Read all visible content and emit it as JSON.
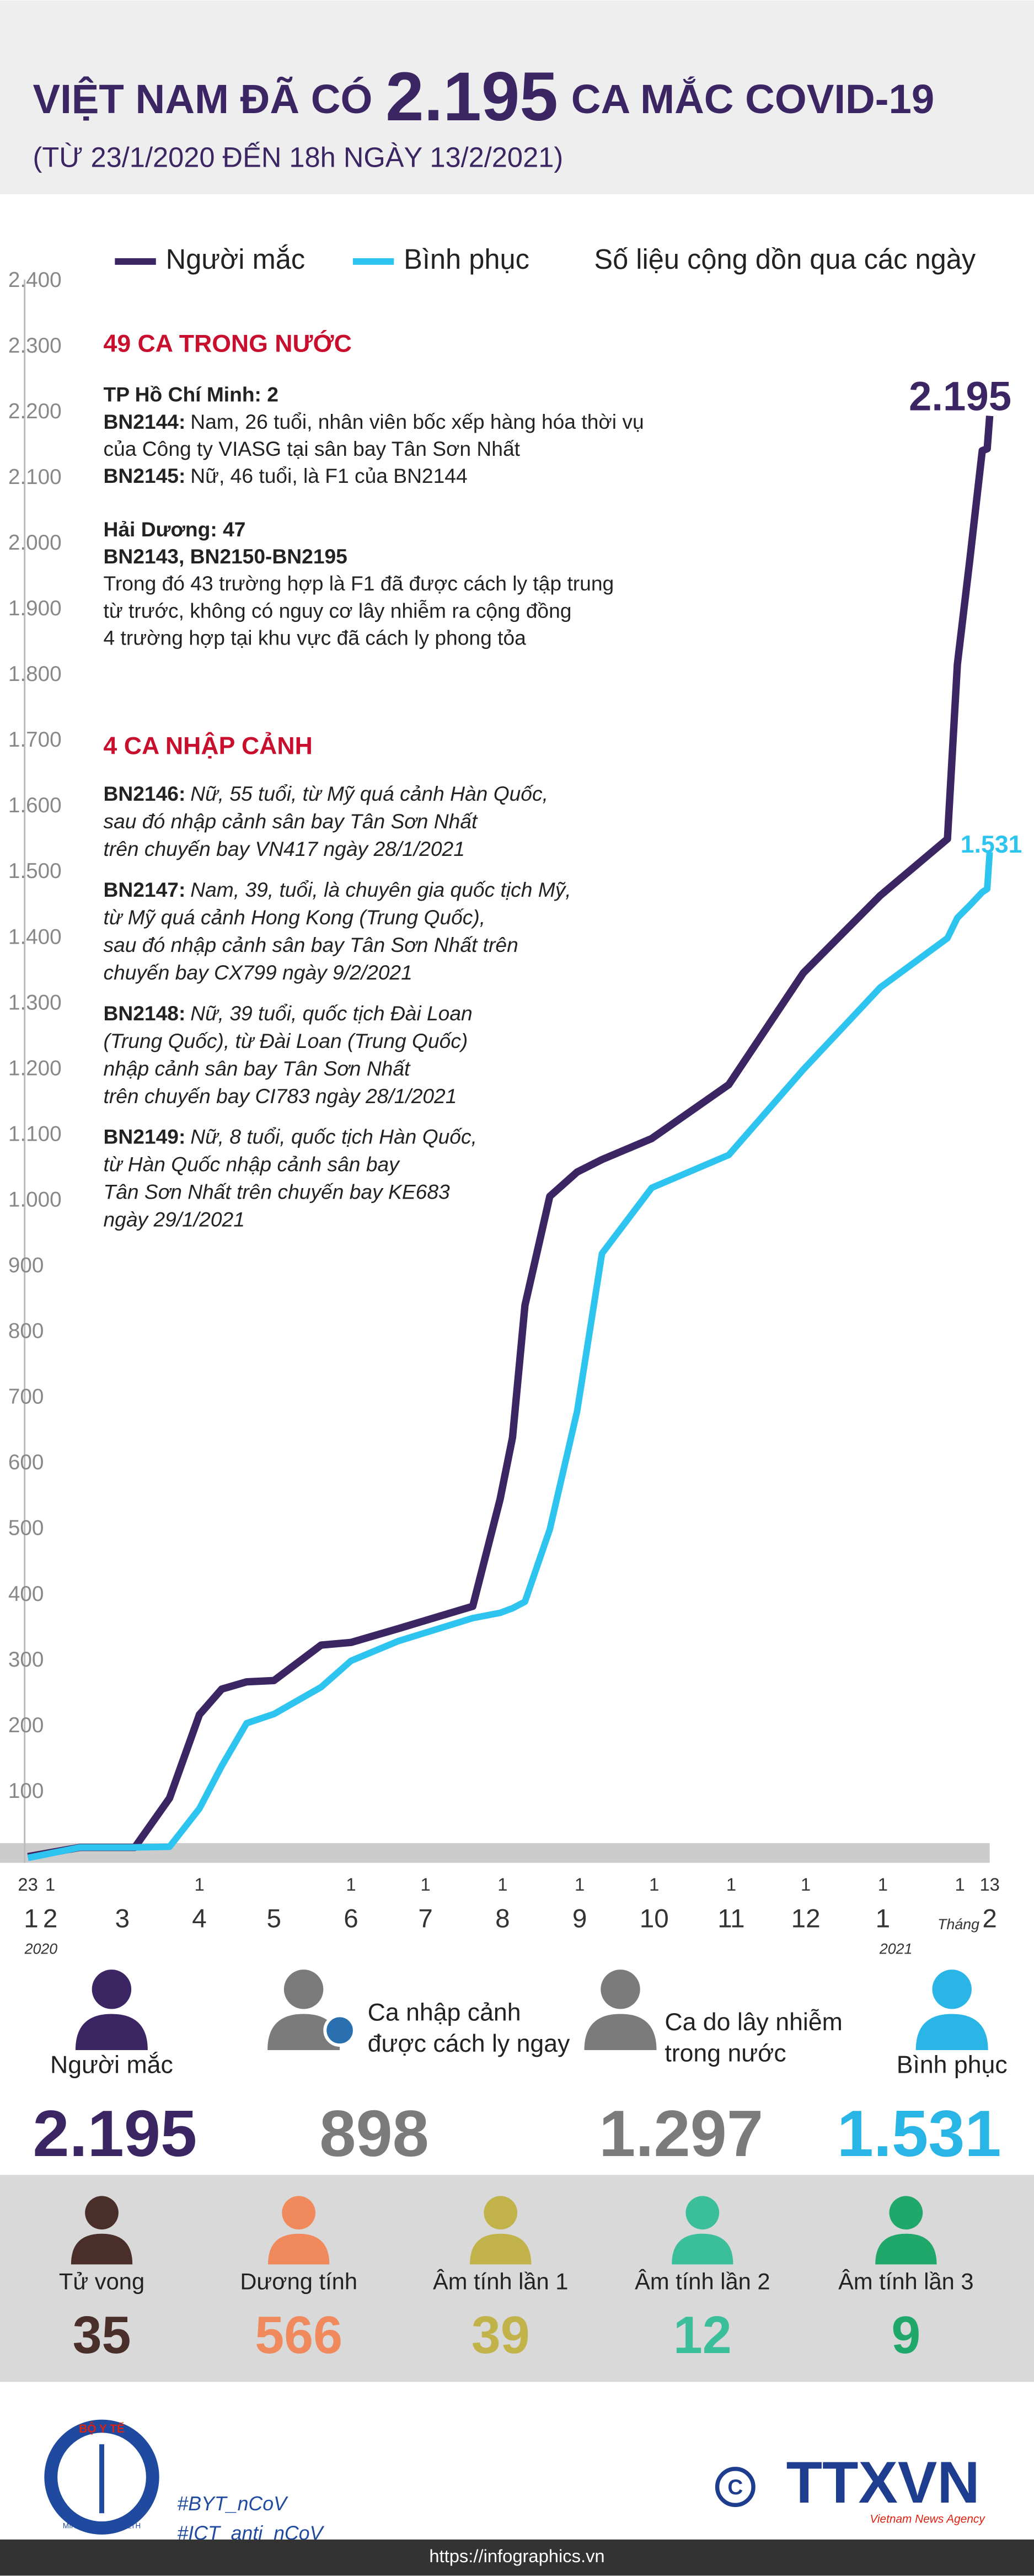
{
  "header": {
    "title_pre": "VIỆT NAM ĐÃ CÓ",
    "title_number": "2.195",
    "title_post": "CA MẮC COVID-19",
    "subtitle": "(TỪ 23/1/2020 ĐẾN 18h NGÀY 13/2/2021)"
  },
  "chart_data": {
    "type": "line",
    "note": "Số liệu cộng dồn qua các ngày",
    "x": [
      "2020-01-23",
      "2020-02-13",
      "2020-03-06",
      "2020-03-20",
      "2020-04-01",
      "2020-04-10",
      "2020-04-20",
      "2020-05-01",
      "2020-05-20",
      "2020-06-01",
      "2020-06-20",
      "2020-07-20",
      "2020-07-31",
      "2020-08-05",
      "2020-08-10",
      "2020-08-20",
      "2020-08-31",
      "2020-09-10",
      "2020-09-30",
      "2020-10-31",
      "2020-11-30",
      "2020-12-31",
      "2021-01-27",
      "2021-01-31",
      "2021-02-05",
      "2021-02-10",
      "2021-02-12",
      "2021-02-13"
    ],
    "series": [
      {
        "name": "Người mắc",
        "color": "#3b2563",
        "end_label": "2.195",
        "values": [
          2,
          16,
          16,
          91,
          218,
          257,
          268,
          270,
          324,
          328,
          349,
          383,
          546,
          640,
          841,
          1007,
          1044,
          1063,
          1095,
          1177,
          1347,
          1465,
          1551,
          1817,
          1976,
          2142,
          2145,
          2195
        ]
      },
      {
        "name": "Bình phục",
        "color": "#2ec4f0",
        "end_label": "1.531",
        "values": [
          0,
          16,
          16,
          17,
          75,
          140,
          205,
          219,
          260,
          300,
          330,
          365,
          373,
          380,
          390,
          500,
          680,
          920,
          1020,
          1070,
          1200,
          1325,
          1400,
          1431,
          1450,
          1470,
          1475,
          1531
        ]
      }
    ],
    "xlim": [
      "2020-01-23",
      "2021-02-13"
    ],
    "xticks": [
      {
        "value": "2020-01-23",
        "label": "23"
      },
      {
        "value": "2020-02-01",
        "label": "1"
      },
      {
        "value": "2020-04-01",
        "label": "1"
      },
      {
        "value": "2020-06-01",
        "label": "1"
      },
      {
        "value": "2020-07-01",
        "label": "1"
      },
      {
        "value": "2020-08-01",
        "label": "1"
      },
      {
        "value": "2020-09-01",
        "label": "1"
      },
      {
        "value": "2020-10-01",
        "label": "1"
      },
      {
        "value": "2020-11-01",
        "label": "1"
      },
      {
        "value": "2020-12-01",
        "label": "1"
      },
      {
        "value": "2021-01-01",
        "label": "1"
      },
      {
        "value": "2021-02-01",
        "label": "1"
      },
      {
        "value": "2021-02-13",
        "label": "13"
      }
    ],
    "month_ticks": [
      {
        "value": "2020-01-23",
        "label": "1"
      },
      {
        "value": "2020-02-01",
        "label": "2"
      },
      {
        "value": "2020-03-01",
        "label": "3"
      },
      {
        "value": "2020-04-01",
        "label": "4"
      },
      {
        "value": "2020-05-01",
        "label": "5"
      },
      {
        "value": "2020-06-01",
        "label": "6"
      },
      {
        "value": "2020-07-01",
        "label": "7"
      },
      {
        "value": "2020-08-01",
        "label": "8"
      },
      {
        "value": "2020-09-01",
        "label": "9"
      },
      {
        "value": "2020-10-01",
        "label": "10"
      },
      {
        "value": "2020-11-01",
        "label": "11"
      },
      {
        "value": "2020-12-01",
        "label": "12"
      },
      {
        "value": "2021-01-01",
        "label": "1"
      },
      {
        "value": "2021-02-13",
        "label": "2"
      }
    ],
    "year_ticks": [
      {
        "value": "2020-01-23",
        "label": "2020"
      },
      {
        "value": "2021-01-01",
        "label": "2021"
      }
    ],
    "month_prefix": "Tháng",
    "ylim": [
      0,
      2400
    ],
    "yticks": [
      100,
      200,
      300,
      400,
      500,
      600,
      700,
      800,
      900,
      {
        "value": 1000,
        "label": "1.000"
      },
      {
        "value": 1100,
        "label": "1.100"
      },
      {
        "value": 1200,
        "label": "1.200"
      },
      {
        "value": 1300,
        "label": "1.300"
      },
      {
        "value": 1400,
        "label": "1.400"
      },
      {
        "value": 1500,
        "label": "1.500"
      },
      {
        "value": 1600,
        "label": "1.600"
      },
      {
        "value": 1700,
        "label": "1.700"
      },
      {
        "value": 1800,
        "label": "1.800"
      },
      {
        "value": 1900,
        "label": "1.900"
      },
      {
        "value": 2000,
        "label": "2.000"
      },
      {
        "value": 2100,
        "label": "2.100"
      },
      {
        "value": 2200,
        "label": "2.200"
      },
      {
        "value": 2300,
        "label": "2.300"
      },
      {
        "value": 2400,
        "label": "2.400"
      }
    ],
    "grid": false
  },
  "domestic": {
    "title": "49 CA TRONG NƯỚC",
    "groups": [
      {
        "heading": "TP Hồ Chí Minh: 2",
        "entries": [
          {
            "code": "BN2144:",
            "lines": [
              "Nam, 26 tuổi, nhân viên bốc xếp hàng hóa thời vụ",
              "của Công ty VIASG tại sân bay Tân Sơn Nhất"
            ]
          },
          {
            "code": "BN2145:",
            "lines": [
              "Nữ, 46 tuổi, là F1 của BN2144"
            ]
          }
        ]
      },
      {
        "heading": "Hải Dương: 47",
        "entries": [
          {
            "code": "BN2143, BN2150-BN2195"
          },
          {
            "lines": [
              "Trong đó 43 trường hợp là F1 đã được cách ly tập trung",
              "từ trước, không có nguy cơ lây nhiễm ra cộng đồng",
              "4 trường hợp tại khu vực đã cách ly phong tỏa"
            ]
          }
        ]
      }
    ]
  },
  "imported": {
    "title": "4 CA NHẬP CẢNH",
    "entries": [
      {
        "code": "BN2146:",
        "lines": [
          "Nữ, 55 tuổi, từ Mỹ quá cảnh Hàn Quốc,",
          "sau đó nhập cảnh sân bay Tân Sơn Nhất",
          "trên chuyến bay VN417 ngày 28/1/2021"
        ]
      },
      {
        "code": "BN2147:",
        "lines": [
          "Nam, 39, tuổi, là chuyên gia quốc tịch Mỹ,",
          "từ Mỹ quá cảnh Hong Kong (Trung Quốc),",
          "sau đó nhập cảnh sân bay Tân Sơn Nhất trên",
          "chuyến bay CX799 ngày 9/2/2021"
        ]
      },
      {
        "code": "BN2148:",
        "lines": [
          "Nữ, 39 tuổi, quốc tịch Đài Loan",
          "(Trung Quốc), từ Đài Loan (Trung Quốc)",
          "nhập cảnh sân bay Tân Sơn Nhất",
          "trên chuyến bay CI783 ngày 28/1/2021"
        ]
      },
      {
        "code": "BN2149:",
        "lines": [
          "Nữ, 8 tuổi, quốc tịch Hàn Quốc,",
          "từ Hàn Quốc nhập cảnh sân bay",
          "Tân Sơn Nhất trên chuyến bay KE683",
          "ngày 29/1/2021"
        ]
      }
    ]
  },
  "summary": [
    {
      "label": [
        "Người mắc"
      ],
      "value": 2195,
      "value_label": "2.195",
      "color": "#3b2563"
    },
    {
      "label": [
        "Ca nhập cảnh",
        "được cách ly ngay"
      ],
      "value": 898,
      "color": "#7b7b7b"
    },
    {
      "label": [
        "Ca do lây nhiễm",
        "trong nước"
      ],
      "value": 1297,
      "value_label": "1.297",
      "color": "#7b7b7b"
    },
    {
      "label": [
        "Bình phục"
      ],
      "value": 1531,
      "value_label": "1.531",
      "color": "#29b6e6"
    }
  ],
  "status": [
    {
      "label": "Tử vong",
      "value": 35,
      "color": "#4a2e2a"
    },
    {
      "label": "Dương tính",
      "value": 566,
      "color": "#f08a5d"
    },
    {
      "label": "Âm tính lần 1",
      "value": 39,
      "color": "#c2b24a"
    },
    {
      "label": "Âm tính lần 2",
      "value": 12,
      "color": "#3bbf9a"
    },
    {
      "label": "Âm tính lần 3",
      "value": 9,
      "color": "#1fa86a"
    }
  ],
  "footer": {
    "emblem_top": "BỘ Y TẾ",
    "emblem_bottom": "MINISTRY OF HEALTH",
    "hashtags": [
      "#BYT_nCoV",
      "#ICT_anti_nCoV"
    ],
    "agency": "TTXVN",
    "agency_sub": "Vietnam News Agency",
    "url": "https://infographics.vn"
  }
}
